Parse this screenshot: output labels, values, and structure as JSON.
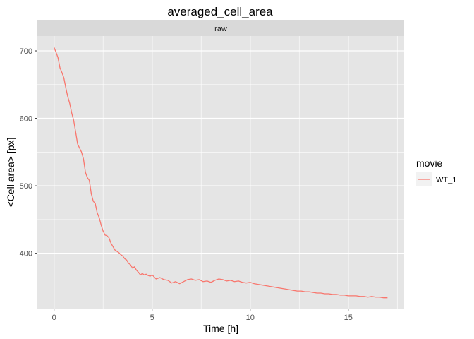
{
  "chart_data": {
    "type": "line",
    "title": "averaged_cell_area",
    "facet_label": "raw",
    "xlabel": "Time [h]",
    "ylabel": "<Cell area> [px]",
    "xlim": [
      -0.85,
      17.85
    ],
    "ylim": [
      318,
      722
    ],
    "x_ticks": [
      0,
      5,
      10,
      15
    ],
    "x_tick_labels": [
      "0",
      "5",
      "10",
      "15"
    ],
    "y_ticks": [
      400,
      500,
      600,
      700
    ],
    "y_tick_labels": [
      "400",
      "500",
      "600",
      "700"
    ],
    "grid": true,
    "legend_position": "right",
    "legend_title": "movie",
    "colors": {
      "panel_bg": "#e5e5e5",
      "strip_bg": "#d9d9d9",
      "grid": "#ffffff",
      "tick": "#333333",
      "series": "#f8766d"
    },
    "series": [
      {
        "name": "WT_1",
        "color": "#f8766d",
        "x": [
          0.0,
          0.1,
          0.2,
          0.3,
          0.4,
          0.5,
          0.6,
          0.7,
          0.8,
          0.9,
          1.0,
          1.1,
          1.2,
          1.3,
          1.4,
          1.5,
          1.6,
          1.7,
          1.8,
          1.9,
          2.0,
          2.1,
          2.2,
          2.3,
          2.4,
          2.5,
          2.6,
          2.7,
          2.8,
          2.9,
          3.0,
          3.1,
          3.2,
          3.3,
          3.4,
          3.5,
          3.6,
          3.7,
          3.8,
          3.9,
          4.0,
          4.1,
          4.2,
          4.3,
          4.4,
          4.5,
          4.6,
          4.7,
          4.8,
          4.9,
          5.0,
          5.2,
          5.4,
          5.6,
          5.8,
          6.0,
          6.2,
          6.4,
          6.6,
          6.8,
          7.0,
          7.2,
          7.4,
          7.6,
          7.8,
          8.0,
          8.2,
          8.4,
          8.6,
          8.8,
          9.0,
          9.2,
          9.4,
          9.6,
          9.8,
          10.0,
          10.2,
          10.4,
          10.6,
          10.8,
          11.0,
          11.2,
          11.4,
          11.6,
          11.8,
          12.0,
          12.2,
          12.4,
          12.6,
          12.8,
          13.0,
          13.2,
          13.4,
          13.6,
          13.8,
          14.0,
          14.2,
          14.4,
          14.6,
          14.8,
          15.0,
          15.2,
          15.4,
          15.6,
          15.8,
          16.0,
          16.2,
          16.4,
          16.6,
          16.8,
          17.0
        ],
        "y": [
          705,
          698,
          690,
          675,
          668,
          660,
          645,
          632,
          622,
          608,
          597,
          580,
          562,
          556,
          550,
          540,
          520,
          512,
          508,
          488,
          477,
          474,
          460,
          453,
          442,
          433,
          427,
          426,
          423,
          415,
          410,
          405,
          403,
          401,
          398,
          396,
          392,
          390,
          385,
          383,
          378,
          380,
          375,
          372,
          368,
          370,
          368,
          369,
          367,
          366,
          368,
          362,
          364,
          361,
          360,
          356,
          358,
          355,
          358,
          361,
          362,
          360,
          361,
          358,
          359,
          357,
          360,
          362,
          361,
          359,
          360,
          358,
          359,
          357,
          356,
          357,
          355,
          354,
          353,
          352,
          351,
          350,
          349,
          348,
          347,
          346,
          345,
          344,
          344,
          343,
          343,
          342,
          341,
          341,
          340,
          340,
          339,
          339,
          338,
          338,
          337,
          337,
          337,
          336,
          336,
          335,
          336,
          335,
          335,
          334,
          334
        ]
      }
    ]
  }
}
